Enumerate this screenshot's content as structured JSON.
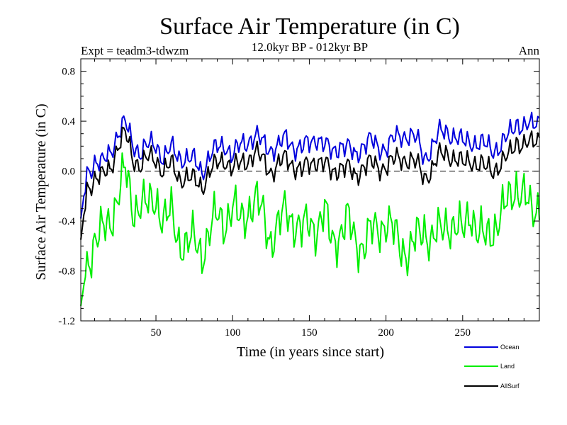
{
  "chart_data": {
    "type": "line",
    "title": "Surface Air Temperature (in C)",
    "subtitle": "12.0kyr BP - 012kyr BP",
    "experiment_label": "Expt = teadm3-tdwzm",
    "season_label": "Ann",
    "xlabel": "Time (in years since start)",
    "ylabel": "Surface Air Temperature (in C)",
    "xlim": [
      1,
      300
    ],
    "ylim": [
      -1.2,
      0.9
    ],
    "x_ticks": [
      50,
      100,
      150,
      200,
      250
    ],
    "y_ticks": [
      0.8,
      0.4,
      0.0,
      -0.4,
      -0.8,
      -1.2
    ],
    "y_tick_labels": [
      "0.8",
      "0.4",
      "0.0",
      "-0.4",
      "-0.8",
      "-1.2"
    ],
    "zero_line": "dashed",
    "series": [
      {
        "name": "Ocean",
        "color": "#0000dd",
        "anchors": [
          [
            1,
            -0.38
          ],
          [
            5,
            -0.02
          ],
          [
            10,
            0.08
          ],
          [
            15,
            0.05
          ],
          [
            20,
            0.15
          ],
          [
            25,
            0.3
          ],
          [
            30,
            0.38
          ],
          [
            35,
            0.22
          ],
          [
            40,
            0.15
          ],
          [
            45,
            0.2
          ],
          [
            50,
            0.22
          ],
          [
            55,
            0.1
          ],
          [
            60,
            0.18
          ],
          [
            65,
            0.12
          ],
          [
            70,
            0.1
          ],
          [
            75,
            0.08
          ],
          [
            80,
            0.0
          ],
          [
            85,
            0.12
          ],
          [
            90,
            0.18
          ],
          [
            95,
            0.22
          ],
          [
            100,
            0.12
          ],
          [
            105,
            0.2
          ],
          [
            110,
            0.25
          ],
          [
            115,
            0.28
          ],
          [
            120,
            0.22
          ],
          [
            125,
            0.18
          ],
          [
            130,
            0.2
          ],
          [
            135,
            0.26
          ],
          [
            140,
            0.2
          ],
          [
            145,
            0.18
          ],
          [
            150,
            0.22
          ],
          [
            155,
            0.28
          ],
          [
            160,
            0.2
          ],
          [
            165,
            0.15
          ],
          [
            170,
            0.22
          ],
          [
            175,
            0.18
          ],
          [
            180,
            0.12
          ],
          [
            185,
            0.22
          ],
          [
            190,
            0.24
          ],
          [
            195,
            0.18
          ],
          [
            200,
            0.2
          ],
          [
            205,
            0.25
          ],
          [
            210,
            0.28
          ],
          [
            215,
            0.3
          ],
          [
            220,
            0.25
          ],
          [
            225,
            0.1
          ],
          [
            230,
            0.2
          ],
          [
            235,
            0.3
          ],
          [
            240,
            0.32
          ],
          [
            245,
            0.28
          ],
          [
            250,
            0.22
          ],
          [
            255,
            0.25
          ],
          [
            260,
            0.22
          ],
          [
            265,
            0.2
          ],
          [
            270,
            0.18
          ],
          [
            275,
            0.2
          ],
          [
            280,
            0.28
          ],
          [
            285,
            0.4
          ],
          [
            290,
            0.35
          ],
          [
            295,
            0.36
          ],
          [
            300,
            0.42
          ]
        ]
      },
      {
        "name": "Land",
        "color": "#00ee00",
        "anchors": [
          [
            1,
            -1.08
          ],
          [
            5,
            -0.75
          ],
          [
            10,
            -0.55
          ],
          [
            15,
            -0.5
          ],
          [
            20,
            -0.4
          ],
          [
            25,
            -0.2
          ],
          [
            30,
            0.0
          ],
          [
            35,
            -0.3
          ],
          [
            40,
            -0.25
          ],
          [
            45,
            -0.3
          ],
          [
            50,
            -0.2
          ],
          [
            55,
            -0.4
          ],
          [
            60,
            -0.35
          ],
          [
            65,
            -0.55
          ],
          [
            70,
            -0.6
          ],
          [
            75,
            -0.55
          ],
          [
            80,
            -0.65
          ],
          [
            85,
            -0.5
          ],
          [
            90,
            -0.35
          ],
          [
            95,
            -0.4
          ],
          [
            100,
            -0.3
          ],
          [
            105,
            -0.4
          ],
          [
            110,
            -0.3
          ],
          [
            115,
            -0.25
          ],
          [
            120,
            -0.35
          ],
          [
            125,
            -0.55
          ],
          [
            130,
            -0.45
          ],
          [
            135,
            -0.3
          ],
          [
            140,
            -0.4
          ],
          [
            145,
            -0.5
          ],
          [
            150,
            -0.4
          ],
          [
            155,
            -0.45
          ],
          [
            160,
            -0.35
          ],
          [
            165,
            -0.55
          ],
          [
            170,
            -0.5
          ],
          [
            175,
            -0.4
          ],
          [
            180,
            -0.55
          ],
          [
            185,
            -0.6
          ],
          [
            190,
            -0.5
          ],
          [
            195,
            -0.45
          ],
          [
            200,
            -0.4
          ],
          [
            205,
            -0.5
          ],
          [
            210,
            -0.6
          ],
          [
            215,
            -0.65
          ],
          [
            220,
            -0.55
          ],
          [
            225,
            -0.45
          ],
          [
            230,
            -0.55
          ],
          [
            235,
            -0.5
          ],
          [
            240,
            -0.4
          ],
          [
            245,
            -0.45
          ],
          [
            250,
            -0.5
          ],
          [
            255,
            -0.3
          ],
          [
            260,
            -0.5
          ],
          [
            265,
            -0.55
          ],
          [
            270,
            -0.45
          ],
          [
            275,
            -0.35
          ],
          [
            280,
            -0.25
          ],
          [
            285,
            -0.1
          ],
          [
            290,
            -0.2
          ],
          [
            295,
            -0.35
          ],
          [
            300,
            -0.25
          ]
        ]
      },
      {
        "name": "AllSurf",
        "color": "#000000",
        "anchors": [
          [
            1,
            -0.55
          ],
          [
            5,
            -0.15
          ],
          [
            10,
            -0.05
          ],
          [
            15,
            -0.05
          ],
          [
            20,
            0.02
          ],
          [
            25,
            0.2
          ],
          [
            30,
            0.3
          ],
          [
            35,
            0.1
          ],
          [
            40,
            0.05
          ],
          [
            45,
            0.1
          ],
          [
            50,
            0.1
          ],
          [
            55,
            0.0
          ],
          [
            60,
            0.05
          ],
          [
            65,
            -0.05
          ],
          [
            70,
            -0.05
          ],
          [
            75,
            -0.08
          ],
          [
            80,
            -0.12
          ],
          [
            85,
            0.0
          ],
          [
            90,
            0.05
          ],
          [
            95,
            0.1
          ],
          [
            100,
            0.02
          ],
          [
            105,
            0.05
          ],
          [
            110,
            0.1
          ],
          [
            115,
            0.15
          ],
          [
            120,
            0.08
          ],
          [
            125,
            0.0
          ],
          [
            130,
            0.05
          ],
          [
            135,
            0.1
          ],
          [
            140,
            0.05
          ],
          [
            145,
            0.0
          ],
          [
            150,
            0.05
          ],
          [
            155,
            0.1
          ],
          [
            160,
            0.05
          ],
          [
            165,
            -0.02
          ],
          [
            170,
            0.05
          ],
          [
            175,
            0.02
          ],
          [
            180,
            -0.05
          ],
          [
            185,
            0.05
          ],
          [
            190,
            0.06
          ],
          [
            195,
            0.02
          ],
          [
            200,
            0.05
          ],
          [
            205,
            0.08
          ],
          [
            210,
            0.1
          ],
          [
            215,
            0.1
          ],
          [
            220,
            0.05
          ],
          [
            225,
            -0.05
          ],
          [
            230,
            0.02
          ],
          [
            235,
            0.12
          ],
          [
            240,
            0.15
          ],
          [
            245,
            0.1
          ],
          [
            250,
            0.05
          ],
          [
            255,
            0.1
          ],
          [
            260,
            0.05
          ],
          [
            265,
            0.02
          ],
          [
            270,
            0.02
          ],
          [
            275,
            0.05
          ],
          [
            280,
            0.12
          ],
          [
            285,
            0.25
          ],
          [
            290,
            0.2
          ],
          [
            295,
            0.22
          ],
          [
            300,
            0.28
          ]
        ]
      }
    ],
    "legend": {
      "placement": "bottom-right",
      "entries": [
        {
          "label": "Ocean",
          "color": "#0000dd"
        },
        {
          "label": "Land",
          "color": "#00ee00"
        },
        {
          "label": "AllSurf",
          "color": "#000000"
        }
      ]
    }
  }
}
